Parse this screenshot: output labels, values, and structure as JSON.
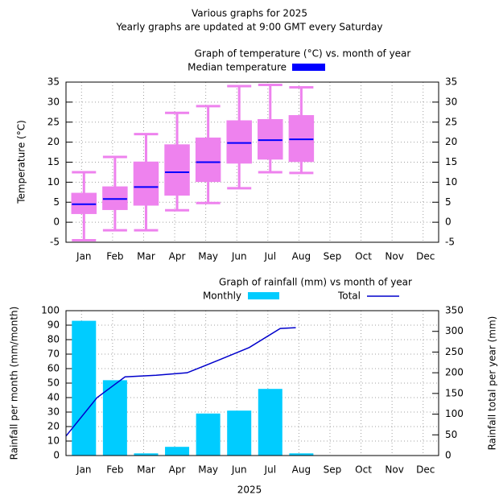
{
  "header": {
    "title": "Various graphs for 2025",
    "subtitle": "Yearly graphs are updated at 9:00 GMT every Saturday"
  },
  "chart_data": [
    {
      "type": "box",
      "title": "Graph of temperature (°C) vs. month of year",
      "ylabel": "Temperature (°C)",
      "categories": [
        "Jan",
        "Feb",
        "Mar",
        "Apr",
        "May",
        "Jun",
        "Jul",
        "Aug",
        "Sep",
        "Oct",
        "Nov",
        "Dec"
      ],
      "series": [
        {
          "name": "Median temperature",
          "color": "#0000ff",
          "box_color": "#ee82ee",
          "min": [
            -4.5,
            -2,
            -2,
            3,
            4.8,
            8.5,
            12.5,
            12.3,
            null,
            null,
            null,
            null
          ],
          "q1": [
            2.2,
            3.2,
            4.3,
            6.8,
            10.2,
            14.8,
            15.8,
            15.2,
            null,
            null,
            null,
            null
          ],
          "median": [
            4.5,
            5.8,
            8.8,
            12.5,
            15,
            19.8,
            20.5,
            20.7,
            null,
            null,
            null,
            null
          ],
          "q3": [
            7.2,
            8.8,
            15,
            19.3,
            21,
            25.3,
            25.6,
            26.6,
            null,
            null,
            null,
            null
          ],
          "max": [
            12.5,
            16.3,
            22,
            27.3,
            29,
            34,
            34.3,
            33.7,
            null,
            null,
            null,
            null
          ]
        }
      ],
      "ylim": [
        -5,
        35
      ],
      "yticks": [
        -5,
        0,
        5,
        10,
        15,
        20,
        25,
        30,
        35
      ],
      "y2lim": [
        -5,
        35
      ],
      "y2ticks": [
        -5,
        0,
        5,
        10,
        15,
        20,
        25,
        30,
        35
      ],
      "grid": true
    },
    {
      "type": "bar_line",
      "title": "Graph of rainfall (mm) vs month of year",
      "xlabel": "2025",
      "ylabel": "Rainfall per month (mm/month)",
      "y2label": "Rainfall total per year (mm)",
      "categories": [
        "Jan",
        "Feb",
        "Mar",
        "Apr",
        "May",
        "Jun",
        "Jul",
        "Aug",
        "Sep",
        "Oct",
        "Nov",
        "Dec"
      ],
      "xlim": [
        0,
        12
      ],
      "series": [
        {
          "name": "Monthly",
          "color": "#00ccff",
          "values": [
            93,
            52,
            1.5,
            6,
            29,
            31,
            46,
            1.5,
            null,
            null,
            null,
            null
          ]
        },
        {
          "name": "Total",
          "color": "#0000cc",
          "axis": "y2",
          "x": [
            0,
            1,
            1.9,
            2.9,
            3.9,
            4.9,
            5.9,
            6.9,
            7.4
          ],
          "values": [
            47,
            140,
            190,
            194,
            200,
            230,
            261,
            307,
            309
          ]
        }
      ],
      "ylim": [
        0,
        100
      ],
      "yticks": [
        0,
        10,
        20,
        30,
        40,
        50,
        60,
        70,
        80,
        90,
        100
      ],
      "y2lim": [
        0,
        350
      ],
      "y2ticks": [
        0,
        50,
        100,
        150,
        200,
        250,
        300,
        350
      ],
      "grid": true
    }
  ]
}
